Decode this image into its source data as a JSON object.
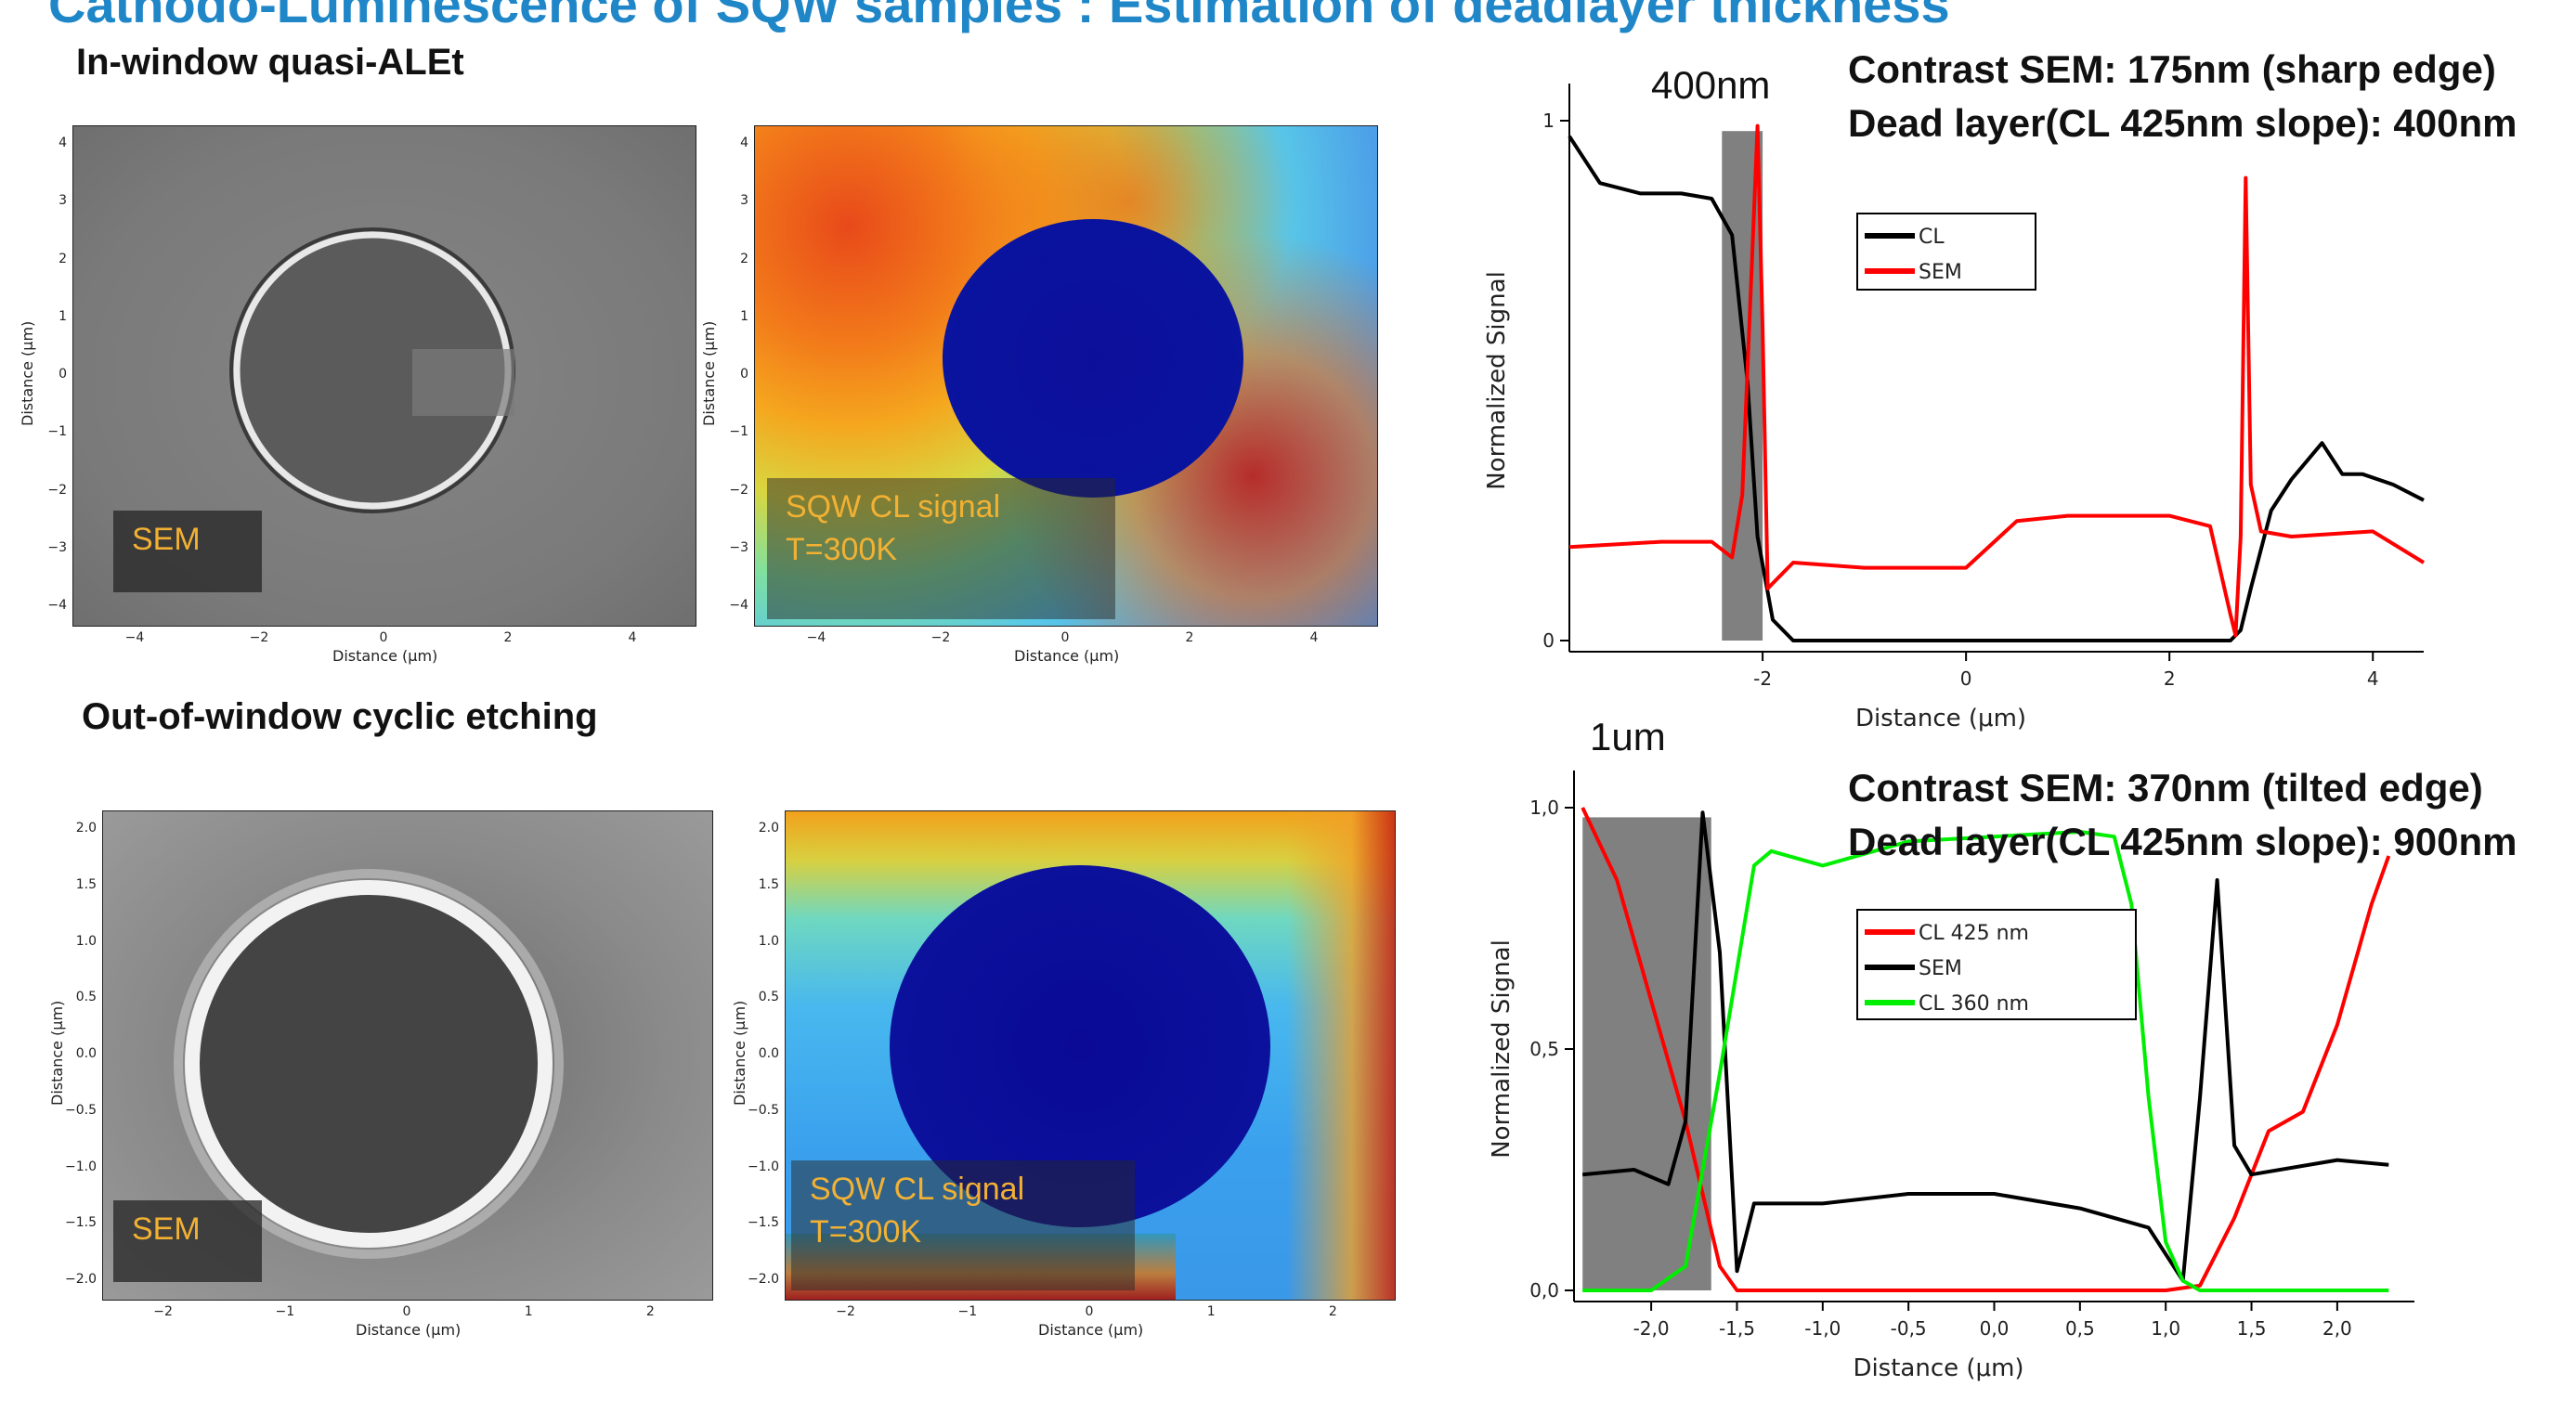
{
  "title": "Cathodo-Luminescence of SQW samples : Estimation of deadlayer thickness",
  "sections": {
    "top": "In-window quasi-ALEt",
    "bottom": "Out-of-window cyclic etching"
  },
  "panels": {
    "sem_label": "SEM",
    "cl_label_1": "SQW CL signal",
    "cl_label_2": "T=300K",
    "axis_distance": "Distance (μm)"
  },
  "top_ticks": {
    "y": [
      "4",
      "3",
      "2",
      "1",
      "0",
      "−1",
      "−2",
      "−3",
      "−4"
    ],
    "x": [
      "−4",
      "−2",
      "0",
      "2",
      "4"
    ]
  },
  "bottom_ticks": {
    "y": [
      "2.0",
      "1.5",
      "1.0",
      "0.5",
      "0.0",
      "−0.5",
      "−1.0",
      "−1.5",
      "−2.0"
    ],
    "x": [
      "−2",
      "−1",
      "0",
      "1",
      "2"
    ]
  },
  "annotations": {
    "top_width": "400nm",
    "bottom_width": "1um",
    "top_line1": "Contrast SEM: 175nm (sharp edge)",
    "top_line2": "Dead layer(CL 425nm slope): 400nm",
    "bottom_line1": "Contrast SEM: 370nm (tilted edge)",
    "bottom_line2": "Dead layer(CL 425nm slope): 900nm"
  },
  "chart_data": [
    {
      "type": "line",
      "xlabel": "Distance (μm)",
      "ylabel": "Normalized Signal",
      "xlim": [
        -3.9,
        4.5
      ],
      "ylim": [
        0,
        1
      ],
      "x_ticks": [
        "-2",
        "0",
        "2",
        "4"
      ],
      "y_ticks": [
        "0",
        "1"
      ],
      "legend": "top-left",
      "shaded_region": [
        -2.4,
        -2.0
      ],
      "series": [
        {
          "name": "CL",
          "color": "#000000",
          "x": [
            -3.9,
            -3.6,
            -3.2,
            -2.8,
            -2.5,
            -2.3,
            -2.15,
            -2.05,
            -1.9,
            -1.7,
            -1.0,
            0.0,
            1.0,
            2.0,
            2.6,
            2.7,
            2.8,
            3.0,
            3.2,
            3.5,
            3.7,
            3.9,
            4.2,
            4.5
          ],
          "y": [
            0.97,
            0.88,
            0.86,
            0.86,
            0.85,
            0.78,
            0.5,
            0.2,
            0.04,
            0.0,
            0.0,
            0.0,
            0.0,
            0.0,
            0.0,
            0.02,
            0.1,
            0.25,
            0.31,
            0.38,
            0.32,
            0.32,
            0.3,
            0.27
          ]
        },
        {
          "name": "SEM",
          "color": "#ff0000",
          "x": [
            -3.9,
            -3.0,
            -2.5,
            -2.3,
            -2.2,
            -2.1,
            -2.05,
            -2.0,
            -1.95,
            -1.9,
            -1.7,
            -1.0,
            0.0,
            0.5,
            1.0,
            2.0,
            2.4,
            2.6,
            2.65,
            2.7,
            2.75,
            2.8,
            2.9,
            3.2,
            4.0,
            4.5
          ],
          "y": [
            0.18,
            0.19,
            0.19,
            0.16,
            0.28,
            0.75,
            0.99,
            0.6,
            0.1,
            0.11,
            0.15,
            0.14,
            0.14,
            0.23,
            0.24,
            0.24,
            0.22,
            0.05,
            0.01,
            0.2,
            0.89,
            0.3,
            0.21,
            0.2,
            0.21,
            0.15
          ]
        }
      ]
    },
    {
      "type": "line",
      "xlabel": "Distance (μm)",
      "ylabel": "Normalized Signal",
      "xlim": [
        -2.45,
        2.45
      ],
      "ylim": [
        0,
        1
      ],
      "x_ticks": [
        "-2,0",
        "-1,5",
        "-1,0",
        "-0,5",
        "0,0",
        "0,5",
        "1,0",
        "1,5",
        "2,0"
      ],
      "y_ticks": [
        "0,0",
        "0,5",
        "1,0"
      ],
      "legend": "center",
      "shaded_region": [
        -2.4,
        -1.65
      ],
      "series": [
        {
          "name": "CL 425 nm",
          "color": "#ff0000",
          "x": [
            -2.4,
            -2.2,
            -2.0,
            -1.8,
            -1.6,
            -1.5,
            -1.3,
            0.0,
            1.0,
            1.2,
            1.4,
            1.6,
            1.8,
            2.0,
            2.2,
            2.3
          ],
          "y": [
            1.0,
            0.85,
            0.6,
            0.35,
            0.05,
            0.0,
            0.0,
            0.0,
            0.0,
            0.01,
            0.15,
            0.33,
            0.37,
            0.55,
            0.8,
            0.9
          ]
        },
        {
          "name": "SEM",
          "color": "#000000",
          "x": [
            -2.4,
            -2.1,
            -1.9,
            -1.8,
            -1.7,
            -1.6,
            -1.5,
            -1.4,
            -1.0,
            -0.5,
            0.0,
            0.5,
            0.9,
            1.1,
            1.2,
            1.3,
            1.4,
            1.5,
            2.0,
            2.3
          ],
          "y": [
            0.24,
            0.25,
            0.22,
            0.35,
            0.99,
            0.7,
            0.04,
            0.18,
            0.18,
            0.2,
            0.2,
            0.17,
            0.13,
            0.02,
            0.4,
            0.85,
            0.3,
            0.24,
            0.27,
            0.26
          ]
        },
        {
          "name": "CL 360 nm",
          "color": "#00ee00",
          "x": [
            -2.4,
            -2.0,
            -1.8,
            -1.6,
            -1.4,
            -1.3,
            -1.0,
            -0.5,
            0.0,
            0.5,
            0.7,
            0.8,
            0.9,
            1.0,
            1.1,
            1.2,
            1.5,
            2.0,
            2.3
          ],
          "y": [
            0.0,
            0.0,
            0.05,
            0.45,
            0.88,
            0.91,
            0.88,
            0.93,
            0.94,
            0.95,
            0.94,
            0.8,
            0.4,
            0.1,
            0.02,
            0.0,
            0.0,
            0.0,
            0.0
          ]
        }
      ]
    }
  ]
}
